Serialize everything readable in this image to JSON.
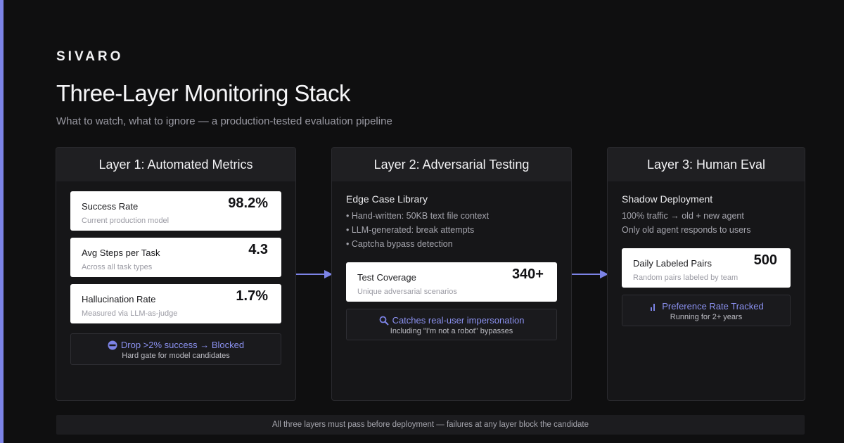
{
  "brand": "SIVARO",
  "title": "Three-Layer Monitoring Stack",
  "subtitle": "What to watch, what to ignore — a production-tested evaluation pipeline",
  "colors": {
    "accent": "#7c83e6",
    "background": "#0f0f10",
    "card": "#ffffff",
    "panel": "#161618"
  },
  "layer1": {
    "heading": "Layer 1: Automated Metrics",
    "metrics": [
      {
        "label": "Success Rate",
        "value": "98.2%",
        "sub": "Current production model"
      },
      {
        "label": "Avg Steps per Task",
        "value": "4.3",
        "sub": "Across all task types"
      },
      {
        "label": "Hallucination Rate",
        "value": "1.7%",
        "sub": "Measured via LLM-as-judge"
      }
    ],
    "gate": {
      "icon": "no-entry-icon",
      "main": "Drop >2% success → Blocked",
      "sub": "Hard gate for model candidates"
    }
  },
  "layer2": {
    "heading": "Layer 2: Adversarial Testing",
    "section_title": "Edge Case Library",
    "bullets": [
      "• Hand-written: 50KB text file context",
      "• LLM-generated: break attempts",
      "• Captcha bypass detection"
    ],
    "metric": {
      "label": "Test Coverage",
      "value": "340+",
      "sub": "Unique adversarial scenarios"
    },
    "callout": {
      "icon": "magnifier-icon",
      "main": "Catches real-user impersonation",
      "sub": "Including \"I'm not a robot\" bypasses"
    }
  },
  "layer3": {
    "heading": "Layer 3: Human Eval",
    "section_title": "Shadow Deployment",
    "lines": [
      "100% traffic → old + new agent",
      "Only old agent responds to users"
    ],
    "metric": {
      "label": "Daily Labeled Pairs",
      "value": "500",
      "sub": "Random pairs labeled by team"
    },
    "callout": {
      "icon": "bar-chart-icon",
      "main": "Preference Rate Tracked",
      "sub": "Running for 2+ years"
    }
  },
  "footer": "All three layers must pass before deployment — failures at any layer block the candidate"
}
